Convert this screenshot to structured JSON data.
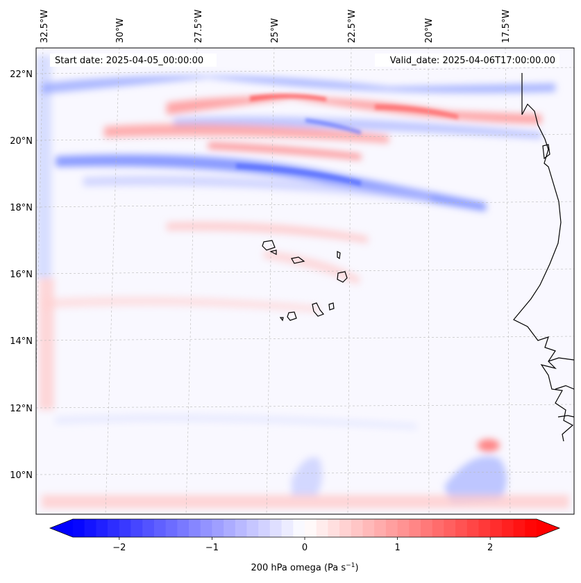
{
  "map": {
    "start_date": "Start date: 2025-04-05_00:00:00",
    "valid_date": "Valid_date: 2025-04-06T17:00:00.00",
    "lon_labels": [
      "32.5°W",
      "30°W",
      "27.5°W",
      "25°W",
      "22.5°W",
      "20°W",
      "17.5°W"
    ],
    "lat_labels": [
      "22°N",
      "20°N",
      "18°N",
      "16°N",
      "14°N",
      "12°N",
      "10°N"
    ],
    "colorbar": {
      "label": "200 hPa omega (Pa s",
      "label_sup": "−1",
      "label_close": ")",
      "ticks": [
        "−2",
        "−1",
        "0",
        "1",
        "2"
      ],
      "tick_values": [
        -2,
        -1,
        0,
        1,
        2
      ],
      "range": [
        -2.5,
        2.5
      ],
      "low_color": "#0000ff",
      "mid_color": "#ffffff",
      "high_color": "#ff0000"
    }
  }
}
